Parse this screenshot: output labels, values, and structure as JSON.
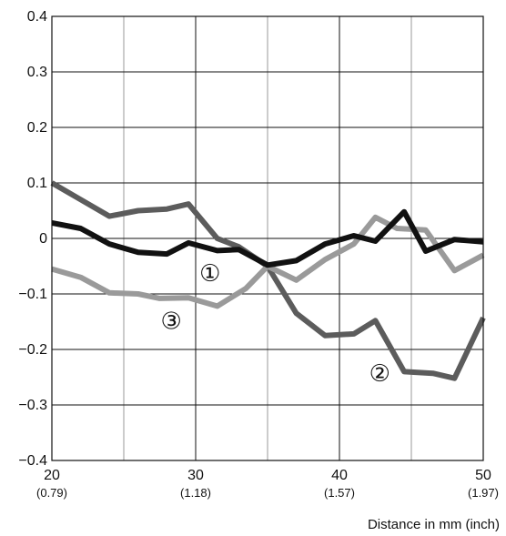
{
  "chart_data": {
    "type": "line",
    "xlabel": "Distance in mm (inch)",
    "ylabel": "",
    "xlim": [
      20,
      50
    ],
    "ylim": [
      -0.4,
      0.4
    ],
    "grid": true,
    "x_ticks": [
      {
        "value": 20,
        "label": "20",
        "sub": "(0.79)"
      },
      {
        "value": 30,
        "label": "30",
        "sub": "(1.18)"
      },
      {
        "value": 40,
        "label": "40",
        "sub": "(1.57)"
      },
      {
        "value": 50,
        "label": "50",
        "sub": "(1.97)"
      }
    ],
    "x_minor_grid": [
      25,
      35,
      45
    ],
    "y_ticks": [
      {
        "value": 0.4,
        "label": "0.4"
      },
      {
        "value": 0.3,
        "label": "0.3"
      },
      {
        "value": 0.2,
        "label": "0.2"
      },
      {
        "value": 0.1,
        "label": "0.1"
      },
      {
        "value": 0,
        "label": "0"
      },
      {
        "value": -0.1,
        "label": "-0.1"
      },
      {
        "value": -0.2,
        "label": "-0.2"
      },
      {
        "value": -0.3,
        "label": "-0.3"
      },
      {
        "value": -0.4,
        "label": "-0.4"
      }
    ],
    "series": [
      {
        "marker": "②",
        "color": "#5c5c5c",
        "x": [
          20,
          22,
          24,
          26,
          28,
          29.5,
          31.5,
          33,
          35,
          37,
          39,
          41,
          42.5,
          44.5,
          46.5,
          48,
          50
        ],
        "y": [
          0.1,
          0.07,
          0.04,
          0.05,
          0.053,
          0.062,
          0.0,
          -0.015,
          -0.05,
          -0.135,
          -0.175,
          -0.172,
          -0.148,
          -0.24,
          -0.243,
          -0.252,
          -0.143
        ]
      },
      {
        "marker": "③",
        "color": "#9a9a9a",
        "x": [
          20,
          22,
          24,
          26,
          27.5,
          29.5,
          31.5,
          33.5,
          35,
          37,
          39,
          41,
          42.5,
          44,
          46,
          48,
          50
        ],
        "y": [
          -0.055,
          -0.07,
          -0.098,
          -0.1,
          -0.108,
          -0.107,
          -0.122,
          -0.09,
          -0.05,
          -0.075,
          -0.038,
          -0.01,
          0.038,
          0.018,
          0.015,
          -0.058,
          -0.03
        ]
      },
      {
        "marker": "①",
        "color": "#111111",
        "x": [
          20,
          22,
          24,
          26,
          28,
          29.5,
          31.5,
          33,
          35,
          37,
          39,
          41,
          42.5,
          44.5,
          46,
          48,
          50
        ],
        "y": [
          0.028,
          0.018,
          -0.01,
          -0.025,
          -0.028,
          -0.008,
          -0.022,
          -0.02,
          -0.048,
          -0.04,
          -0.01,
          0.005,
          -0.005,
          0.048,
          -0.023,
          -0.002,
          -0.006
        ]
      }
    ],
    "annotations": [
      {
        "text": "①",
        "x": 31,
        "y": -0.062
      },
      {
        "text": "③",
        "x": 28.3,
        "y": -0.148
      },
      {
        "text": "②",
        "x": 42.8,
        "y": -0.243
      }
    ]
  }
}
